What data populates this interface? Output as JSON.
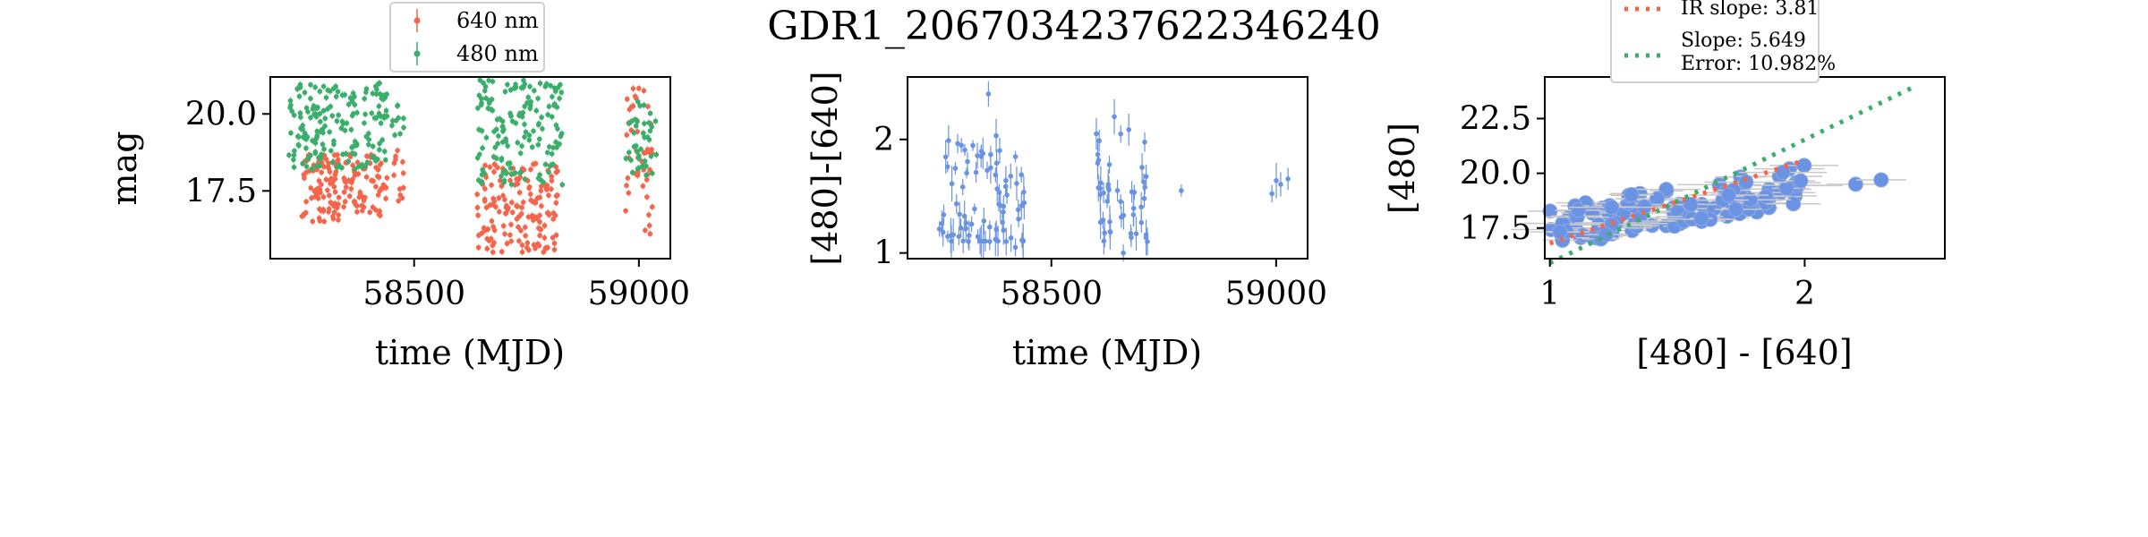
{
  "figure": {
    "title": "GDR1_2067034237622346240"
  },
  "colors": {
    "red": "#f4654c",
    "green": "#3cae6c",
    "blue": "#6b93e3",
    "scatter_face": "#6b93e3"
  },
  "legend1": {
    "items": [
      "640 nm",
      "480 nm"
    ]
  },
  "legend3": {
    "items": [
      "IR slope: 3.81",
      "Slope: 5.649",
      "Error: 10.982%"
    ]
  },
  "chart_data": [
    {
      "type": "scatter",
      "xlabel": "time (MJD)",
      "ylabel": "mag",
      "xlim": [
        58180,
        59070
      ],
      "ylim": [
        21.2,
        15.3
      ],
      "xticks": [
        58500,
        59000
      ],
      "yticks": [
        17.5,
        20.0
      ],
      "inverted_y": true,
      "legend_position": "above",
      "series": [
        {
          "name": "640 nm",
          "color": "red",
          "segments": [
            [
              58250,
              58440,
              16.5,
              18.7
            ],
            [
              58450,
              58480,
              17.0,
              18.9
            ],
            [
              58640,
              58820,
              15.5,
              18.4
            ],
            [
              58970,
              59030,
              16.0,
              20.9
            ]
          ],
          "count_per_segment": [
            160,
            12,
            150,
            45
          ]
        },
        {
          "name": "480 nm",
          "color": "green",
          "segments": [
            [
              58220,
              58440,
              18.2,
              21.0
            ],
            [
              58450,
              58480,
              19.3,
              20.4
            ],
            [
              58640,
              58830,
              17.7,
              21.1
            ],
            [
              58970,
              59040,
              18.0,
              20.4
            ]
          ],
          "count_per_segment": [
            175,
            10,
            150,
            40
          ]
        }
      ]
    },
    {
      "type": "scatter",
      "xlabel": "time (MJD)",
      "ylabel": "[480]-[640]",
      "xlim": [
        58180,
        59070
      ],
      "ylim": [
        2.55,
        0.95
      ],
      "xticks": [
        58500,
        59000
      ],
      "yticks": [
        1,
        2
      ],
      "inverted_y": true,
      "series": [
        {
          "name": "",
          "color": "blue",
          "segments": [
            [
              58250,
              58440,
              1.1,
              2.05
            ],
            [
              58600,
              58720,
              1.1,
              2.15
            ],
            [
              58780,
              58790,
              1.55,
              1.55
            ],
            [
              58970,
              59030,
              1.3,
              1.75
            ]
          ],
          "count_per_segment": [
            80,
            45,
            1,
            4
          ],
          "outliers": [
            [
              58360,
              2.4
            ],
            [
              58420,
              1.05
            ],
            [
              58660,
              1.0
            ],
            [
              58600,
              2.05
            ],
            [
              58640,
              2.2
            ]
          ]
        }
      ]
    },
    {
      "type": "scatter",
      "xlabel": "[480] - [640]",
      "ylabel": "[480]",
      "xlim": [
        0.98,
        2.55
      ],
      "ylim": [
        24.4,
        16.1
      ],
      "xticks": [
        1,
        2
      ],
      "yticks": [
        17.5,
        20.0,
        22.5
      ],
      "inverted_y": true,
      "legend_position": "top-center",
      "points_box": [
        [
          1.0,
          2.0,
          18.0,
          21.0
        ]
      ],
      "extra_points": [
        [
          2.2,
          19.5
        ],
        [
          2.3,
          19.7
        ],
        [
          1.2,
          17.0
        ],
        [
          1.22,
          17.2
        ]
      ],
      "point_count": 110,
      "lines": [
        {
          "name": "IR slope: 3.81",
          "color": "red",
          "x": [
            1.0,
            2.0
          ],
          "y": [
            16.8,
            20.6
          ]
        },
        {
          "name": "Slope: 5.649",
          "color": "green",
          "x": [
            1.0,
            2.42
          ],
          "y": [
            15.9,
            23.9
          ]
        }
      ]
    }
  ]
}
